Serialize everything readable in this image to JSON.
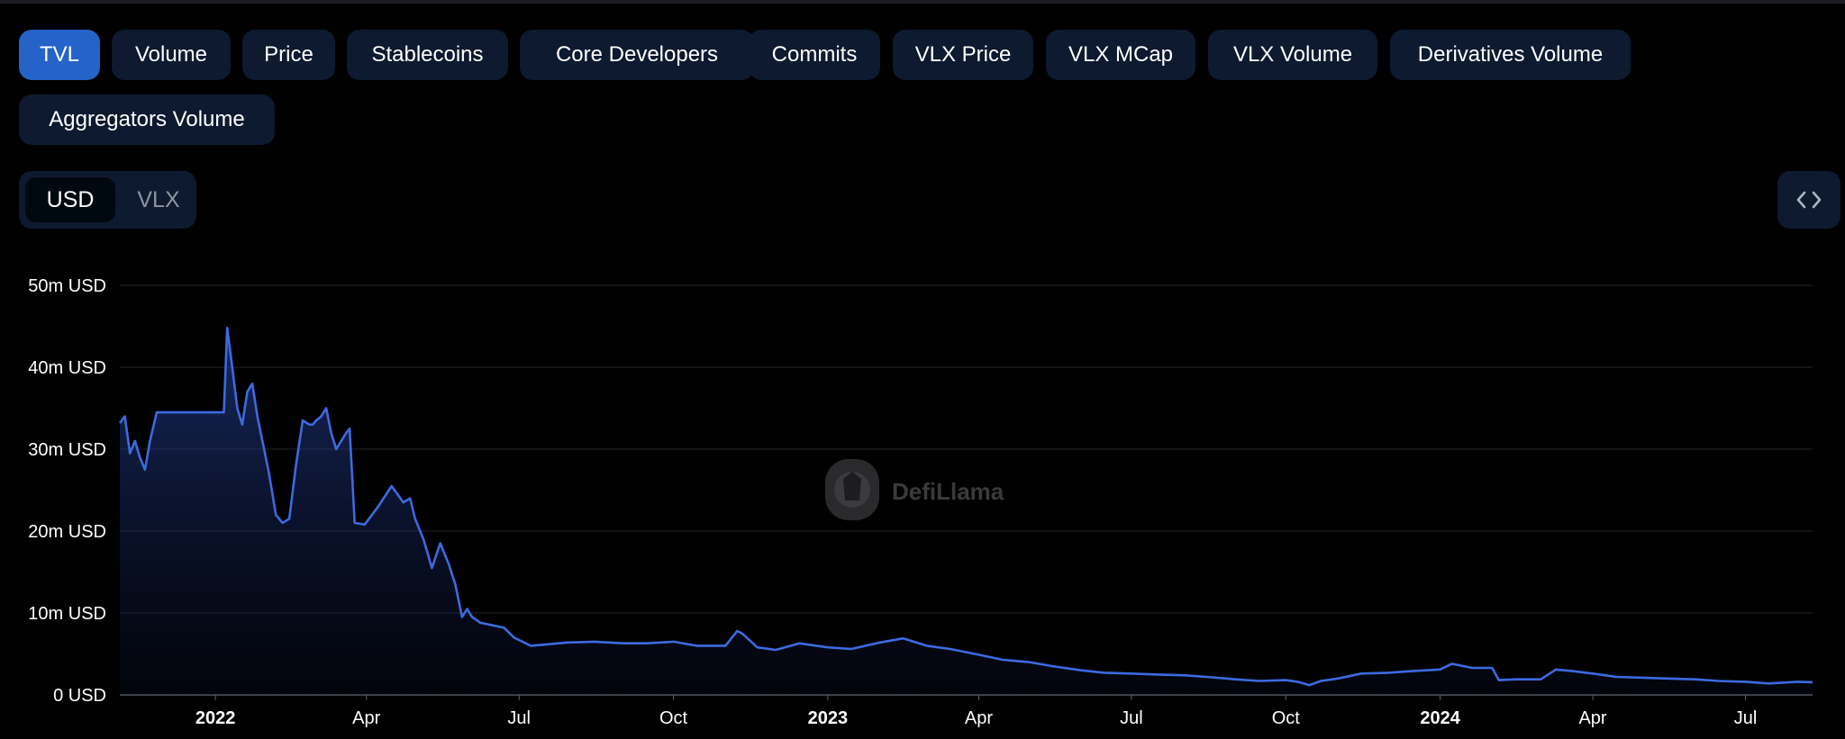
{
  "tabs": [
    "TVL",
    "Volume",
    "Price",
    "Stablecoins",
    "Core Developers",
    "Commits",
    "VLX Price",
    "VLX MCap",
    "VLX Volume",
    "Derivatives Volume",
    "Aggregators Volume"
  ],
  "active_tab": "TVL",
  "currency_toggle": {
    "options": [
      "USD",
      "VLX"
    ],
    "selected": "USD"
  },
  "embed_icon": "code-icon",
  "watermark": "DefiLlama",
  "colors": {
    "line": "#3d6ae0",
    "accent": "#2563c9",
    "tab_bg": "#0d1a2f",
    "background": "#000000"
  },
  "chart_data": {
    "type": "area",
    "title": "",
    "xlabel": "",
    "ylabel": "",
    "ylim": [
      0,
      50000000
    ],
    "xlim": [
      "2021-11-05",
      "2024-08-10"
    ],
    "yticks": [
      {
        "value": 0,
        "label": "0 USD"
      },
      {
        "value": 10000000,
        "label": "10m USD"
      },
      {
        "value": 20000000,
        "label": "20m USD"
      },
      {
        "value": 30000000,
        "label": "30m USD"
      },
      {
        "value": 40000000,
        "label": "40m USD"
      },
      {
        "value": 50000000,
        "label": "50m USD"
      }
    ],
    "xticks": [
      {
        "date": "2022-01-01",
        "label": "2022",
        "bold": true
      },
      {
        "date": "2022-04-01",
        "label": "Apr",
        "bold": false
      },
      {
        "date": "2022-07-01",
        "label": "Jul",
        "bold": false
      },
      {
        "date": "2022-10-01",
        "label": "Oct",
        "bold": false
      },
      {
        "date": "2023-01-01",
        "label": "2023",
        "bold": true
      },
      {
        "date": "2023-04-01",
        "label": "Apr",
        "bold": false
      },
      {
        "date": "2023-07-01",
        "label": "Jul",
        "bold": false
      },
      {
        "date": "2023-10-01",
        "label": "Oct",
        "bold": false
      },
      {
        "date": "2024-01-01",
        "label": "2024",
        "bold": true
      },
      {
        "date": "2024-04-01",
        "label": "Apr",
        "bold": false
      },
      {
        "date": "2024-07-01",
        "label": "Jul",
        "bold": false
      }
    ],
    "grid": true,
    "series": [
      {
        "x": [
          "2021-11-05",
          "2021-11-08",
          "2021-11-11",
          "2021-11-14",
          "2021-11-17",
          "2021-11-20",
          "2021-11-23",
          "2021-11-27",
          "2021-12-01",
          "2021-12-04",
          "2021-12-07",
          "2021-12-12",
          "2021-12-18",
          "2021-12-26",
          "2022-01-03",
          "2022-01-06",
          "2022-01-08",
          "2022-01-11",
          "2022-01-14",
          "2022-01-17",
          "2022-01-20",
          "2022-01-23",
          "2022-01-26",
          "2022-01-29",
          "2022-02-02",
          "2022-02-06",
          "2022-02-10",
          "2022-02-14",
          "2022-02-18",
          "2022-02-22",
          "2022-02-26",
          "2022-02-28",
          "2022-03-02",
          "2022-03-05",
          "2022-03-08",
          "2022-03-11",
          "2022-03-14",
          "2022-03-17",
          "2022-03-20",
          "2022-03-22",
          "2022-03-25",
          "2022-03-31",
          "2022-04-08",
          "2022-04-16",
          "2022-04-23",
          "2022-04-27",
          "2022-04-30",
          "2022-05-05",
          "2022-05-10",
          "2022-05-15",
          "2022-05-20",
          "2022-05-24",
          "2022-05-28",
          "2022-05-31",
          "2022-06-03",
          "2022-06-08",
          "2022-06-15",
          "2022-06-22",
          "2022-06-28",
          "2022-07-08",
          "2022-07-30",
          "2022-08-15",
          "2022-09-01",
          "2022-09-15",
          "2022-10-01",
          "2022-10-15",
          "2022-11-01",
          "2022-11-08",
          "2022-11-11",
          "2022-11-20",
          "2022-12-01",
          "2022-12-15",
          "2023-01-01",
          "2023-01-15",
          "2023-02-01",
          "2023-02-15",
          "2023-03-01",
          "2023-03-15",
          "2023-04-01",
          "2023-04-15",
          "2023-05-01",
          "2023-05-15",
          "2023-06-01",
          "2023-06-15",
          "2023-07-01",
          "2023-07-15",
          "2023-08-01",
          "2023-08-15",
          "2023-09-01",
          "2023-09-15",
          "2023-10-01",
          "2023-10-08",
          "2023-10-15",
          "2023-10-22",
          "2023-11-01",
          "2023-11-15",
          "2023-12-01",
          "2023-12-15",
          "2024-01-01",
          "2024-01-08",
          "2024-01-20",
          "2024-02-01",
          "2024-02-05",
          "2024-02-15",
          "2024-03-01",
          "2024-03-10",
          "2024-03-20",
          "2024-04-01",
          "2024-04-15",
          "2024-05-01",
          "2024-05-15",
          "2024-06-01",
          "2024-06-15",
          "2024-07-01",
          "2024-07-15",
          "2024-08-01",
          "2024-08-10"
        ],
        "y": [
          33200000,
          34000000,
          29500000,
          31000000,
          29000000,
          27500000,
          31000000,
          34500000,
          34500000,
          34500000,
          34500000,
          34500000,
          34500000,
          34500000,
          34500000,
          34500000,
          44800000,
          40000000,
          35000000,
          33000000,
          37000000,
          38000000,
          34000000,
          31000000,
          27000000,
          22000000,
          21000000,
          21500000,
          28000000,
          33500000,
          33000000,
          33000000,
          33500000,
          34000000,
          35000000,
          32000000,
          30000000,
          31000000,
          32000000,
          32500000,
          21000000,
          20800000,
          23000000,
          25500000,
          23500000,
          24000000,
          21500000,
          19000000,
          15500000,
          18500000,
          16000000,
          13500000,
          9500000,
          10500000,
          9500000,
          8800000,
          8500000,
          8200000,
          7000000,
          6000000,
          6400000,
          6500000,
          6300000,
          6300000,
          6500000,
          6000000,
          6000000,
          7800000,
          7500000,
          5800000,
          5500000,
          6300000,
          5800000,
          5600000,
          6400000,
          6900000,
          6000000,
          5600000,
          4900000,
          4300000,
          4000000,
          3500000,
          3000000,
          2700000,
          2600000,
          2500000,
          2400000,
          2200000,
          1900000,
          1700000,
          1800000,
          1600000,
          1200000,
          1700000,
          2000000,
          2600000,
          2700000,
          2900000,
          3100000,
          3800000,
          3300000,
          3300000,
          1800000,
          1900000,
          1900000,
          3100000,
          2900000,
          2600000,
          2200000,
          2100000,
          2000000,
          1900000,
          1700000,
          1600000,
          1400000,
          1600000,
          1550000
        ]
      }
    ]
  }
}
